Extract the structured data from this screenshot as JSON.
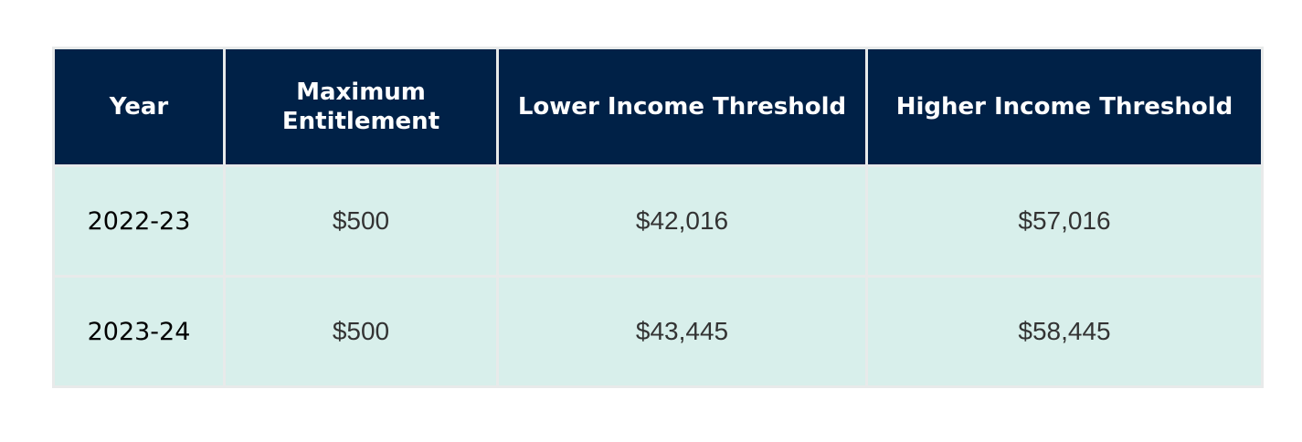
{
  "table": {
    "headers": [
      "Year",
      "Maximum Entitlement",
      "Lower Income Threshold",
      "Higher Income Threshold"
    ],
    "rows": [
      [
        "2022-23",
        "$500",
        "$42,016",
        "$57,016"
      ],
      [
        "2023-24",
        "$500",
        "$43,445",
        "$58,445"
      ]
    ]
  }
}
